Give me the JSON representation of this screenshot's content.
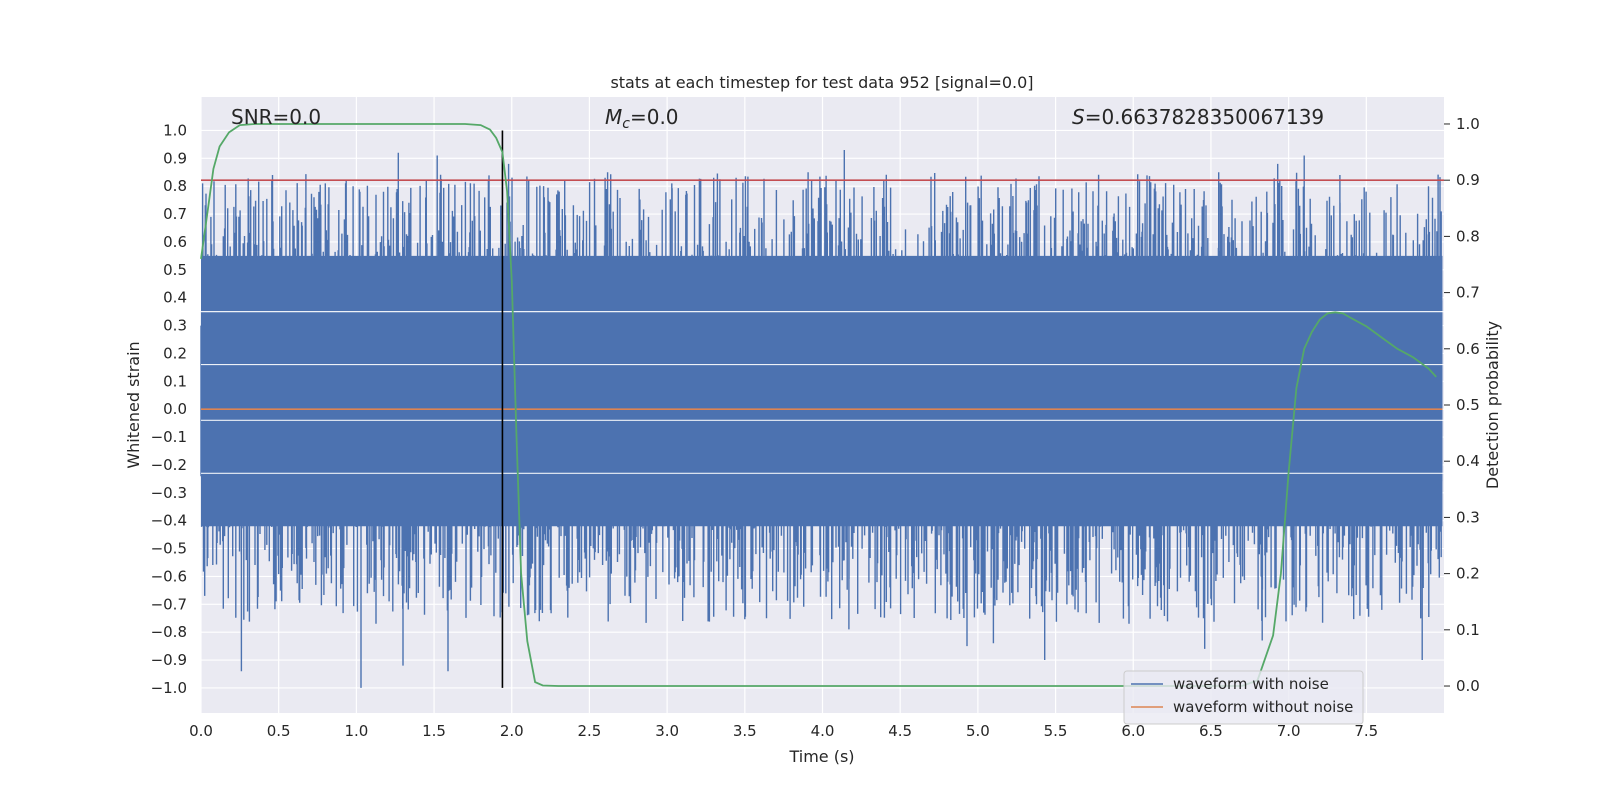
{
  "chart_data": {
    "type": "line",
    "title": "stats at each timestep for test data 952 [signal=0.0]",
    "xlabel": "Time (s)",
    "ylabel": "Whitened strain",
    "y2label": "Detection probability",
    "xlim": [
      0.0,
      8.0
    ],
    "ylim": [
      -1.09,
      1.12
    ],
    "y2lim": [
      -0.048,
      1.048
    ],
    "xticks": [
      "0.0",
      "0.5",
      "1.0",
      "1.5",
      "2.0",
      "2.5",
      "3.0",
      "3.5",
      "4.0",
      "4.5",
      "5.0",
      "5.5",
      "6.0",
      "6.5",
      "7.0",
      "7.5"
    ],
    "yticks": [
      "1.0",
      "0.9",
      "0.8",
      "0.7",
      "0.6",
      "0.5",
      "0.4",
      "0.3",
      "0.2",
      "0.1",
      "0.0",
      "-0.1",
      "-0.2",
      "-0.3",
      "-0.4",
      "-0.5",
      "-0.6",
      "-0.7",
      "-0.8",
      "-0.9",
      "-1.0"
    ],
    "y2ticks": [
      "1.0",
      "0.9",
      "0.8",
      "0.7",
      "0.6",
      "0.5",
      "0.4",
      "0.3",
      "0.2",
      "0.1",
      "0.0"
    ],
    "annotations": {
      "snr": "SNR=0.0",
      "mc_symbol": "M",
      "mc_sub": "c",
      "mc_value": "=0.0",
      "s_symbol": "S",
      "s_value": "=0.6637828350067139"
    },
    "threshold_line": {
      "value": 0.9,
      "axis": "right",
      "color": "#c44e52"
    },
    "marker_line": {
      "x": 1.94,
      "color": "#000000"
    },
    "series": [
      {
        "name": "waveform with noise",
        "color": "#4c72b0",
        "noise_band": {
          "low": -0.42,
          "high": 0.55
        },
        "notable_peaks": [
          {
            "x": 0.01,
            "y": 0.81
          },
          {
            "x": 0.46,
            "y": 0.84
          },
          {
            "x": 0.8,
            "y": 0.81
          },
          {
            "x": 1.27,
            "y": 0.92
          },
          {
            "x": 1.52,
            "y": 0.91
          },
          {
            "x": 1.98,
            "y": 0.88
          },
          {
            "x": 3.03,
            "y": 0.81
          },
          {
            "x": 3.3,
            "y": 0.83
          },
          {
            "x": 3.93,
            "y": 0.82
          },
          {
            "x": 4.14,
            "y": 0.93
          },
          {
            "x": 6.55,
            "y": 0.85
          },
          {
            "x": 6.93,
            "y": 0.88
          },
          {
            "x": 7.1,
            "y": 0.91
          },
          {
            "x": 7.33,
            "y": 0.84
          },
          {
            "x": 7.9,
            "y": 0.8
          }
        ],
        "notable_troughs": [
          {
            "x": 0.26,
            "y": -0.94
          },
          {
            "x": 1.03,
            "y": -1.0
          },
          {
            "x": 1.3,
            "y": -0.92
          },
          {
            "x": 1.59,
            "y": -0.94
          },
          {
            "x": 3.1,
            "y": -0.76
          },
          {
            "x": 4.17,
            "y": -0.79
          },
          {
            "x": 4.93,
            "y": -0.85
          },
          {
            "x": 5.1,
            "y": -0.84
          },
          {
            "x": 5.43,
            "y": -0.9
          },
          {
            "x": 6.46,
            "y": -0.86
          },
          {
            "x": 6.83,
            "y": -0.83
          },
          {
            "x": 7.6,
            "y": -0.72
          },
          {
            "x": 7.86,
            "y": -0.9
          }
        ]
      },
      {
        "name": "waveform without noise",
        "color": "#dd8452",
        "x": [
          0.0,
          7.99
        ],
        "y": [
          0.0,
          0.0
        ]
      },
      {
        "name": "detection probability",
        "axis": "right",
        "color": "#55a868",
        "x": [
          0.0,
          0.05,
          0.08,
          0.12,
          0.18,
          0.25,
          0.35,
          0.5,
          1.0,
          1.5,
          1.7,
          1.8,
          1.86,
          1.9,
          1.94,
          1.97,
          2.0,
          2.03,
          2.06,
          2.1,
          2.15,
          2.2,
          2.3,
          3.0,
          4.0,
          5.0,
          6.0,
          6.7,
          6.8,
          6.85,
          6.9,
          6.95,
          7.0,
          7.05,
          7.1,
          7.15,
          7.2,
          7.25,
          7.3,
          7.35,
          7.4,
          7.5,
          7.6,
          7.7,
          7.8,
          7.9,
          7.95
        ],
        "y": [
          0.76,
          0.86,
          0.92,
          0.96,
          0.985,
          0.998,
          1.0,
          1.0,
          1.0,
          1.0,
          1.0,
          0.998,
          0.99,
          0.975,
          0.95,
          0.88,
          0.72,
          0.45,
          0.2,
          0.08,
          0.007,
          0.001,
          0.0,
          0.0,
          0.0,
          0.0,
          0.0,
          0.0,
          0.01,
          0.05,
          0.09,
          0.2,
          0.38,
          0.53,
          0.6,
          0.63,
          0.652,
          0.663,
          0.665,
          0.663,
          0.655,
          0.64,
          0.62,
          0.6,
          0.585,
          0.565,
          0.55
        ]
      }
    ]
  }
}
